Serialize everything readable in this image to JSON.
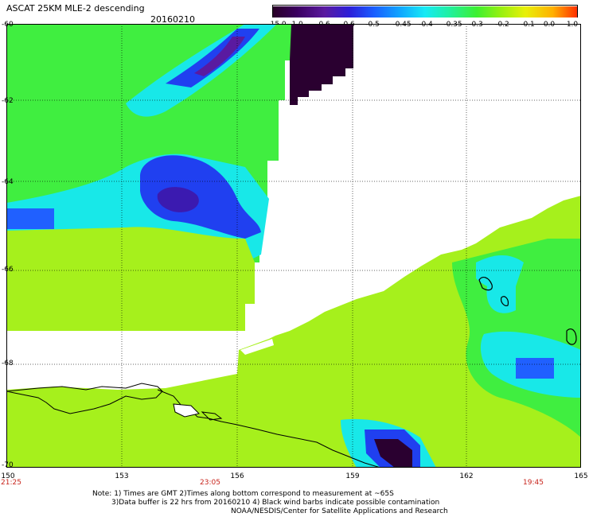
{
  "header": {
    "title": "ASCAT 25KM MLE-2 descending",
    "date": "20160210"
  },
  "colorbar": {
    "labels": [
      "-15.0",
      "-1.0",
      "-0.6",
      "-0.6",
      "-0.5",
      "-0.45",
      "-0.4",
      "-0.35",
      "-0.3",
      "-0.2",
      "-0.1",
      "0.0",
      "1.0"
    ],
    "colors": [
      "#2a0028",
      "#3b0060",
      "#5a1aa0",
      "#2d1ed8",
      "#1a5cff",
      "#10a8ff",
      "#16eaf5",
      "#20f0a0",
      "#3cf030",
      "#98f010",
      "#e8f008",
      "#ffb000",
      "#ff3000"
    ]
  },
  "axes": {
    "lat_labels": [
      "-60",
      "-62",
      "-64",
      "-66",
      "-68",
      "-70"
    ],
    "lon_labels": [
      "150",
      "153",
      "156",
      "159",
      "162",
      "165"
    ]
  },
  "times": [
    "21:25",
    "23:05",
    "19:45"
  ],
  "notes": {
    "line1": "Note: 1) Times are GMT 2)Times along bottom correspond to measurement at ~65S",
    "line2": "3)Data buffer is 22 hrs from 20160210 4) Black wind barbs indicate possible contamination",
    "line3": "NOAA/NESDIS/Center for Satellite Applications and Research"
  },
  "palette": {
    "yellow_green": "#a6f01c",
    "green": "#40ee40",
    "cyan": "#18e8e8",
    "blue": "#2040f0",
    "dark_purple": "#2a0030"
  }
}
